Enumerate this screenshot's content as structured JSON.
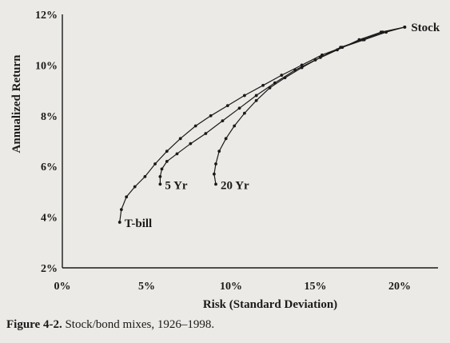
{
  "caption": {
    "label": "Figure 4-2.",
    "text": "Stock/bond mixes, 1926–1998."
  },
  "chart_data": {
    "type": "line",
    "xlabel": "Risk (Standard Deviation)",
    "ylabel": "Annualized Return",
    "xlim": [
      0,
      20
    ],
    "ylim": [
      2,
      12
    ],
    "x_ticks": [
      "0%",
      "5%",
      "10%",
      "15%",
      "20%"
    ],
    "y_ticks": [
      "2%",
      "4%",
      "6%",
      "8%",
      "10%",
      "12%"
    ],
    "grid": false,
    "legend": "none",
    "series": [
      {
        "name": "T-bill",
        "points": [
          [
            3.4,
            3.8
          ],
          [
            3.5,
            4.3
          ],
          [
            3.8,
            4.8
          ],
          [
            4.3,
            5.2
          ],
          [
            4.9,
            5.6
          ],
          [
            5.5,
            6.1
          ],
          [
            6.2,
            6.6
          ],
          [
            7.0,
            7.1
          ],
          [
            7.9,
            7.6
          ],
          [
            8.8,
            8.0
          ],
          [
            9.8,
            8.4
          ],
          [
            10.8,
            8.8
          ],
          [
            11.9,
            9.2
          ],
          [
            13.0,
            9.6
          ],
          [
            14.2,
            10.0
          ],
          [
            15.4,
            10.4
          ],
          [
            16.6,
            10.7
          ],
          [
            17.9,
            11.0
          ],
          [
            19.2,
            11.3
          ],
          [
            20.3,
            11.5
          ]
        ]
      },
      {
        "name": "5 Yr",
        "points": [
          [
            5.8,
            5.3
          ],
          [
            5.8,
            5.6
          ],
          [
            5.9,
            5.9
          ],
          [
            6.2,
            6.2
          ],
          [
            6.8,
            6.5
          ],
          [
            7.6,
            6.9
          ],
          [
            8.5,
            7.3
          ],
          [
            9.5,
            7.8
          ],
          [
            10.5,
            8.3
          ],
          [
            11.5,
            8.8
          ],
          [
            12.6,
            9.3
          ],
          [
            13.8,
            9.8
          ],
          [
            15.0,
            10.2
          ],
          [
            16.3,
            10.6
          ],
          [
            17.6,
            11.0
          ],
          [
            18.9,
            11.3
          ],
          [
            20.3,
            11.5
          ]
        ]
      },
      {
        "name": "20 Yr",
        "points": [
          [
            9.1,
            5.3
          ],
          [
            9.0,
            5.7
          ],
          [
            9.1,
            6.1
          ],
          [
            9.3,
            6.6
          ],
          [
            9.7,
            7.1
          ],
          [
            10.2,
            7.6
          ],
          [
            10.8,
            8.1
          ],
          [
            11.5,
            8.6
          ],
          [
            12.3,
            9.1
          ],
          [
            13.2,
            9.5
          ],
          [
            14.2,
            9.9
          ],
          [
            15.3,
            10.3
          ],
          [
            16.5,
            10.7
          ],
          [
            17.8,
            11.0
          ],
          [
            19.0,
            11.3
          ],
          [
            20.3,
            11.5
          ]
        ]
      }
    ],
    "annotations": [
      "T-bill",
      "5 Yr",
      "20 Yr",
      "Stock"
    ]
  }
}
